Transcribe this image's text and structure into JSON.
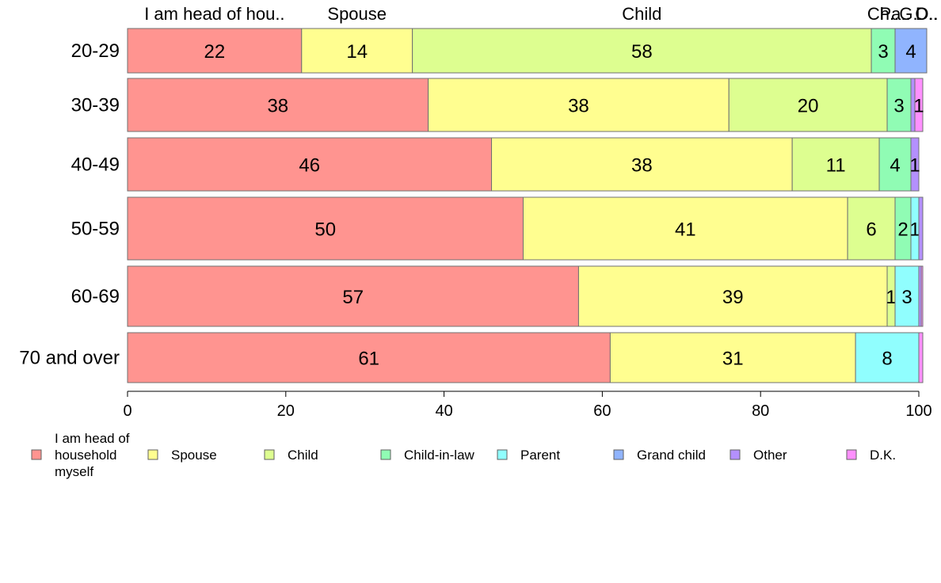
{
  "chart_data": {
    "type": "bar",
    "orientation": "horizontal",
    "stacked": true,
    "categories": [
      "20-29",
      "30-39",
      "40-49",
      "50-59",
      "60-69",
      "70 and over"
    ],
    "series": [
      {
        "name": "I am head of household myself",
        "color": "#ff9490",
        "values": [
          22,
          38,
          46,
          50,
          57,
          61
        ]
      },
      {
        "name": "Spouse",
        "color": "#fffe90",
        "values": [
          14,
          38,
          38,
          41,
          39,
          31
        ]
      },
      {
        "name": "Child",
        "color": "#ddfe90",
        "values": [
          58,
          20,
          11,
          6,
          1,
          0
        ]
      },
      {
        "name": "Child-in-law",
        "color": "#90fcb4",
        "values": [
          3,
          3,
          4,
          2,
          0,
          0
        ]
      },
      {
        "name": "Parent",
        "color": "#90fefe",
        "values": [
          0,
          0,
          0,
          1,
          3,
          8
        ]
      },
      {
        "name": "Grand child",
        "color": "#90b4fe",
        "values": [
          4,
          0,
          0,
          0,
          0,
          0
        ]
      },
      {
        "name": "Other",
        "color": "#b490fe",
        "values": [
          0,
          0.5,
          1,
          0.5,
          0.3,
          0
        ]
      },
      {
        "name": "D.K.",
        "color": "#fe90fe",
        "values": [
          0,
          1,
          0,
          0,
          0.2,
          0.5
        ]
      }
    ],
    "top_labels": [
      "I am head of hou..",
      "Spouse",
      "Child",
      "Ch..",
      "Pa..",
      "G..",
      "O..",
      "D.."
    ],
    "legend_labels": [
      "I am head of\nhousehold\nmyself",
      "Spouse",
      "Child",
      "Child-in-law",
      "Parent",
      "Grand child",
      "Other",
      "D.K."
    ],
    "xlim": [
      0,
      100
    ],
    "xticks": [
      0,
      20,
      40,
      60,
      80,
      100
    ],
    "xlabel": "",
    "ylabel": "",
    "title": "",
    "grid": false,
    "legend_position": "bottom"
  }
}
